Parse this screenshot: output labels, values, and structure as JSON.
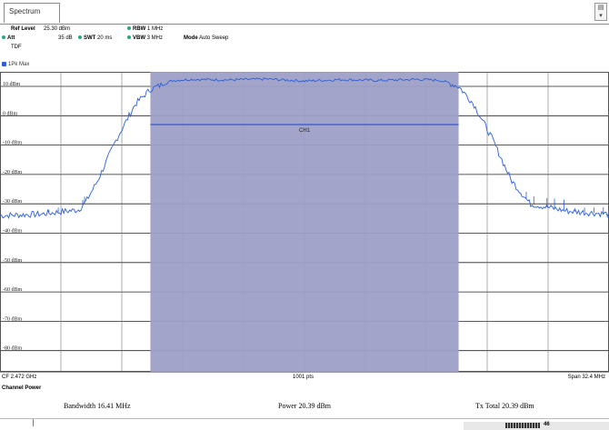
{
  "tab": {
    "label": "Spectrum"
  },
  "corner_button_icon": "window-menu-icon",
  "params": {
    "ref_level_label": "Ref Level",
    "ref_level_value": "25.30 dBm",
    "att_label": "Att",
    "att_value": "35 dB",
    "swt_label": "SWT",
    "swt_value": "20 ms",
    "rbw_label": "RBW",
    "rbw_value": "1 MHz",
    "vbw_label": "VBW",
    "vbw_value": "3 MHz",
    "mode_label": "Mode",
    "mode_value": "Auto Sweep",
    "tdf": "TDF"
  },
  "trace_label": "1Pk Max",
  "plot": {
    "ch_label": "CH1"
  },
  "footer": {
    "cf": "CF 2.472 GHz",
    "points": "1001 pts",
    "span": "Span 32.4 MHz"
  },
  "channel_power": {
    "title": "Channel Power",
    "bandwidth": "Bandwidth  16.41 MHz",
    "power": "Power  20.39 dBm",
    "tx_total": "Tx Total  20.39 dBm"
  },
  "status": {
    "progress_percent": "46"
  },
  "chart_data": {
    "type": "line",
    "ylabels": [
      "10 dBm",
      "0 dBm",
      "-10 dBm",
      "-20 dBm",
      "-30 dBm",
      "-40 dBm",
      "-50 dBm",
      "-60 dBm",
      "-70 dBm",
      "-80 dBm"
    ],
    "ylim": [
      -90,
      20
    ],
    "xlim": [
      2455.8,
      2488.2
    ],
    "channel_band": [
      2463.8,
      2480.2
    ],
    "channel_line_dbm": -3,
    "series": [
      {
        "color": "#2b5fd9",
        "x": [
          2455.8,
          2458.0,
          2460.0,
          2460.4,
          2461.0,
          2462.0,
          2463.0,
          2463.8,
          2465.0,
          2466.0,
          2468.0,
          2470.0,
          2472.0,
          2474.0,
          2476.0,
          2478.0,
          2479.2,
          2480.2,
          2481.0,
          2482.0,
          2483.0,
          2484.0,
          2486.0,
          2488.2
        ],
        "y": [
          -34.0,
          -33.5,
          -32.0,
          -29.0,
          -22.0,
          -8.0,
          4.0,
          9.0,
          12.0,
          12.4,
          12.2,
          12.5,
          11.8,
          12.3,
          12.0,
          12.4,
          12.1,
          10.0,
          4.0,
          -8.0,
          -22.0,
          -30.0,
          -32.5,
          -33.5
        ]
      }
    ]
  }
}
